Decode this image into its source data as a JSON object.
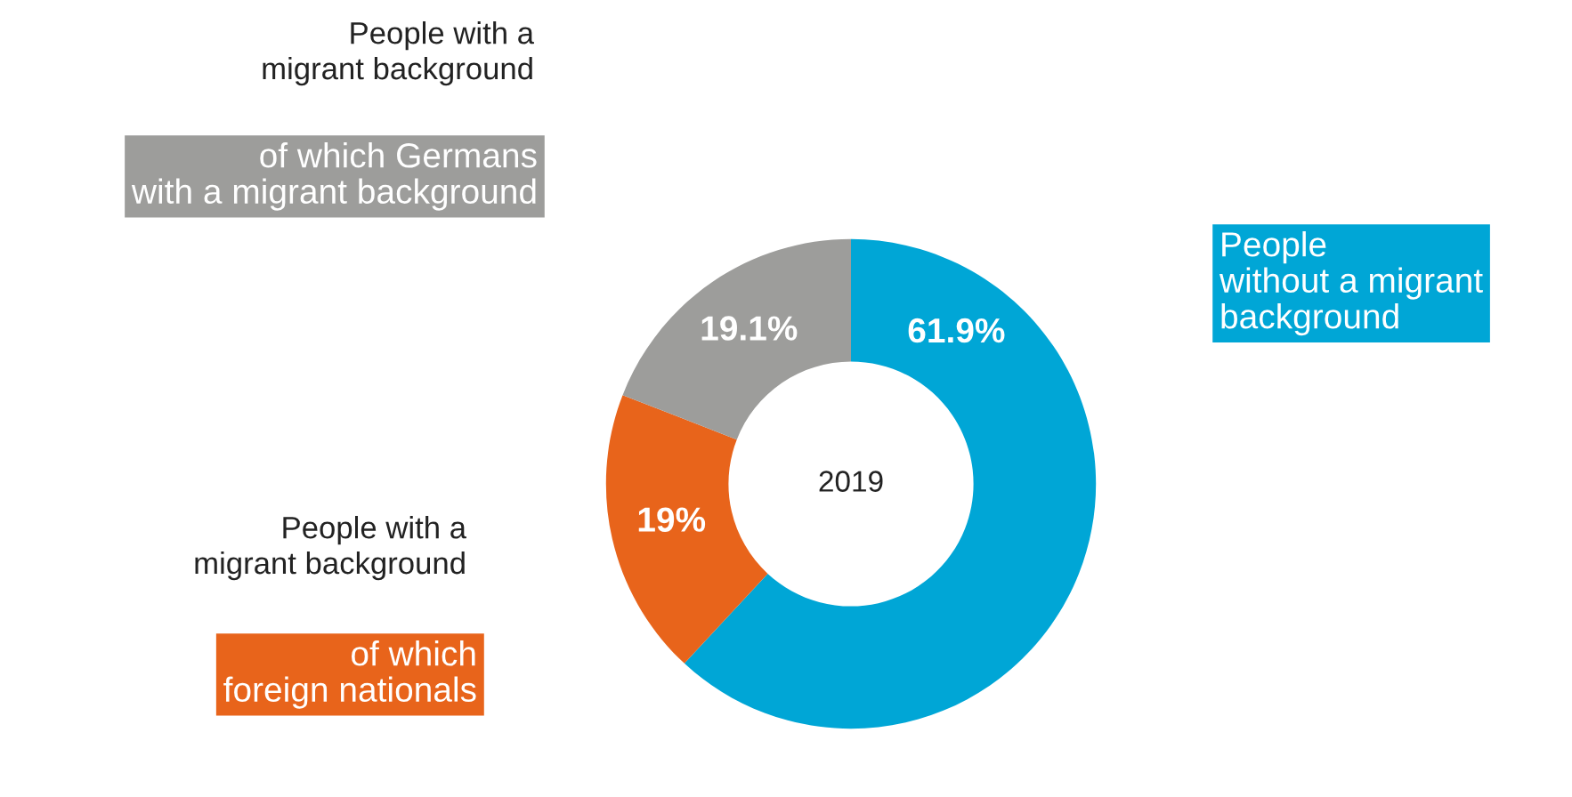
{
  "chart_data": {
    "type": "donut",
    "title": "2019",
    "categories": [
      "People\nwithout a migrant\nbackground",
      "of which\nforeign nationals",
      "of which Germans\nwith a migrant background"
    ],
    "values": [
      61.9,
      19,
      19.1
    ],
    "colors": [
      "#00a6d6",
      "#e8641b",
      "#9d9d9b"
    ],
    "value_labels": [
      "61.9%",
      "19%",
      "19.1%"
    ],
    "annotations": [
      "People with a\nmigrant background",
      "People with a\nmigrant background"
    ]
  }
}
